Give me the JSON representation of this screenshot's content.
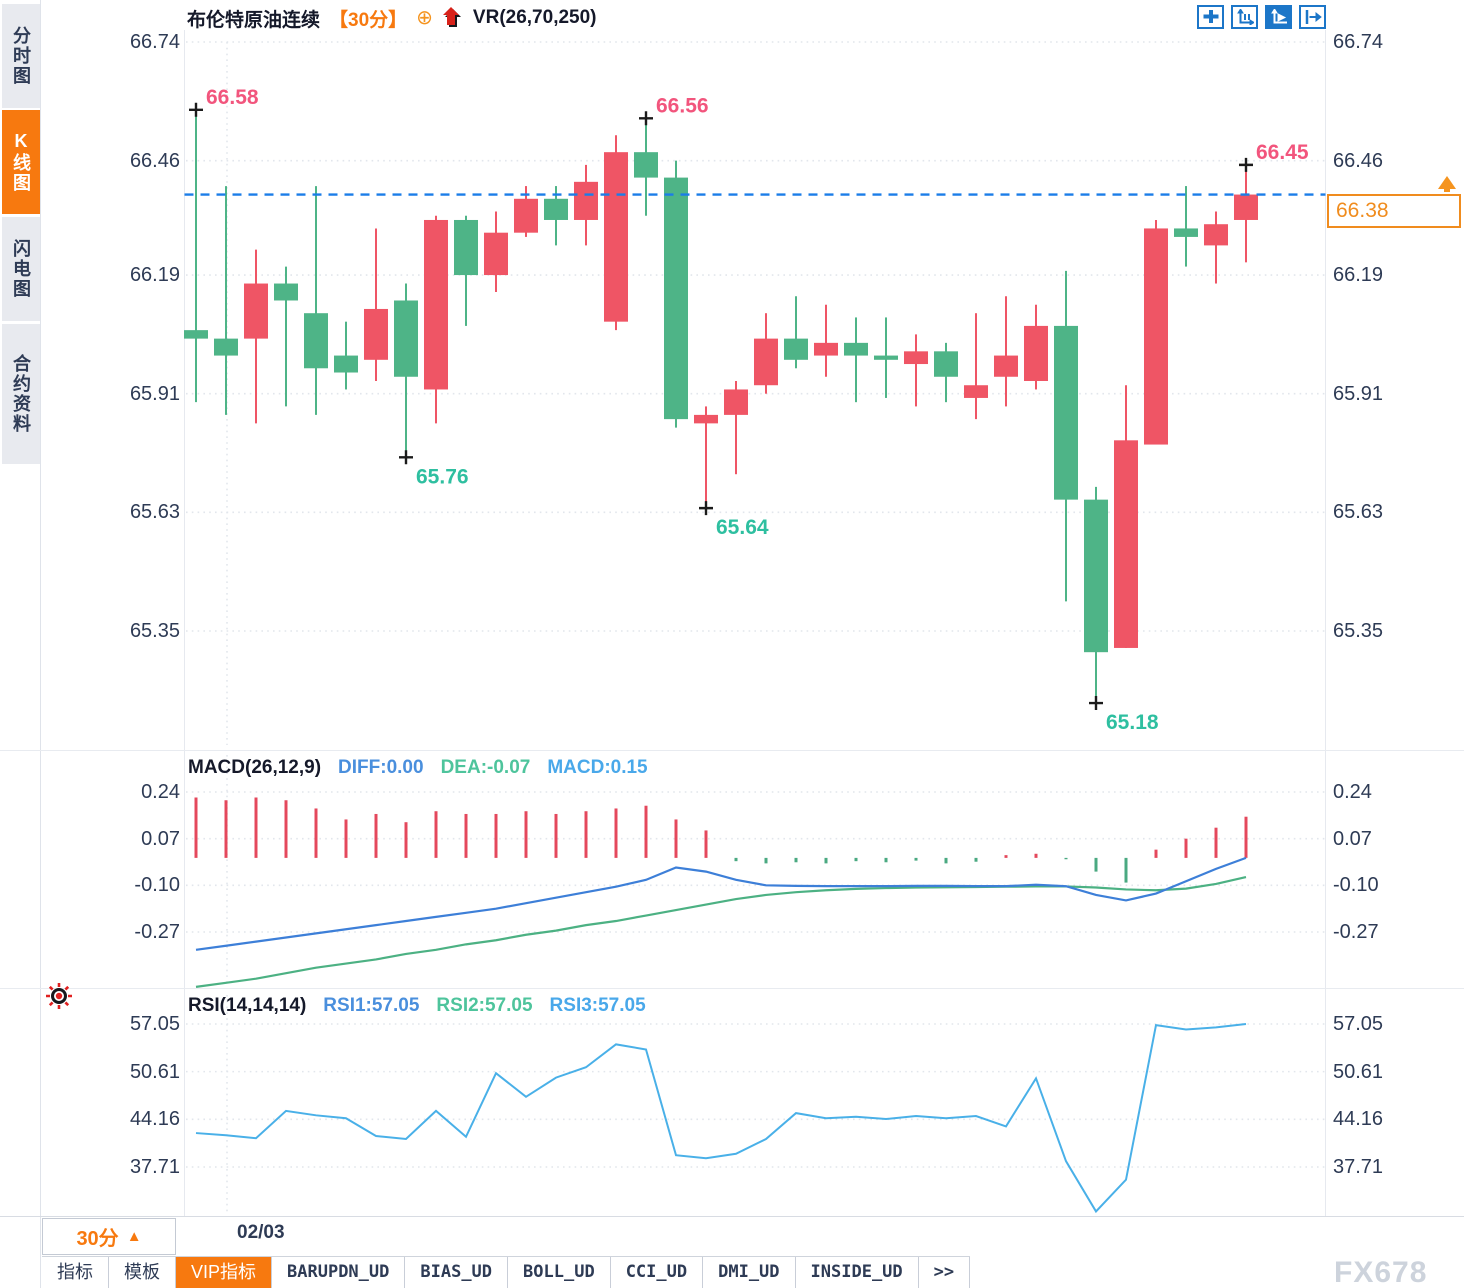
{
  "app": {
    "type": "futures-trading-chart"
  },
  "sidebar": {
    "tabs": [
      {
        "label": "分时图",
        "active": false
      },
      {
        "label": "K线图",
        "active": true
      },
      {
        "label": "闪电图",
        "active": false
      },
      {
        "label": "合约资料",
        "active": false
      }
    ]
  },
  "header": {
    "symbol": "布伦特原油连续",
    "period": "【30分】",
    "plus_icon": "⊕",
    "indicator": "VR(26,70,250)"
  },
  "toolbar": {
    "icons": [
      {
        "name": "move-crosshair-icon",
        "active": false
      },
      {
        "name": "axis-scale-icon",
        "active": false
      },
      {
        "name": "axis-play-icon",
        "active": true
      },
      {
        "name": "jump-to-latest-icon",
        "active": false
      }
    ]
  },
  "colors": {
    "up_candle": "#ef5565",
    "down_candle": "#4eb487",
    "hist_pos": "#e4485c",
    "hist_neg": "#4aa981",
    "diff_line": "#3d7fd8",
    "dea_line": "#4cb183",
    "rsi_line": "#49b0e8",
    "dashed_price_line": "#1b7de8",
    "tag_orange": "#f08c1e",
    "accent_orange": "#f7790f",
    "anno_high": "#f2557d",
    "anno_low": "#2ebfa0",
    "axis_text": "#2e3b55"
  },
  "chart_data": [
    {
      "type": "candlestick",
      "title": "布伦特原油连续 30分 K线",
      "y_ticks": [
        66.74,
        66.46,
        66.19,
        65.91,
        65.63,
        65.35
      ],
      "ylim": [
        65.06,
        66.77
      ],
      "current_price": 66.38,
      "ohlc": [
        [
          66.06,
          66.58,
          65.89,
          66.04
        ],
        [
          66.04,
          66.4,
          65.86,
          66.0
        ],
        [
          66.04,
          66.25,
          65.84,
          66.17
        ],
        [
          66.17,
          66.21,
          65.88,
          66.13
        ],
        [
          66.1,
          66.4,
          65.86,
          65.97
        ],
        [
          66.0,
          66.08,
          65.92,
          65.96
        ],
        [
          65.99,
          66.3,
          65.94,
          66.11
        ],
        [
          66.13,
          66.17,
          65.76,
          65.95
        ],
        [
          65.92,
          66.33,
          65.84,
          66.32
        ],
        [
          66.32,
          66.33,
          66.07,
          66.19
        ],
        [
          66.19,
          66.34,
          66.15,
          66.29
        ],
        [
          66.29,
          66.4,
          66.28,
          66.37
        ],
        [
          66.37,
          66.4,
          66.26,
          66.32
        ],
        [
          66.32,
          66.45,
          66.26,
          66.41
        ],
        [
          66.08,
          66.52,
          66.06,
          66.48
        ],
        [
          66.48,
          66.56,
          66.33,
          66.42
        ],
        [
          66.42,
          66.46,
          65.83,
          65.85
        ],
        [
          65.84,
          65.88,
          65.64,
          65.86
        ],
        [
          65.86,
          65.94,
          65.72,
          65.92
        ],
        [
          65.93,
          66.1,
          65.91,
          66.04
        ],
        [
          66.04,
          66.14,
          65.97,
          65.99
        ],
        [
          66.0,
          66.12,
          65.95,
          66.03
        ],
        [
          66.03,
          66.09,
          65.89,
          66.0
        ],
        [
          66.0,
          66.09,
          65.9,
          65.99
        ],
        [
          65.98,
          66.05,
          65.88,
          66.01
        ],
        [
          66.01,
          66.03,
          65.89,
          65.95
        ],
        [
          65.9,
          66.1,
          65.85,
          65.93
        ],
        [
          65.95,
          66.14,
          65.88,
          66.0
        ],
        [
          65.94,
          66.12,
          65.92,
          66.07
        ],
        [
          66.07,
          66.2,
          65.42,
          65.66
        ],
        [
          65.66,
          65.69,
          65.18,
          65.3
        ],
        [
          65.31,
          65.93,
          65.31,
          65.8
        ],
        [
          65.79,
          66.32,
          65.79,
          66.3
        ],
        [
          66.3,
          66.4,
          66.21,
          66.28
        ],
        [
          66.26,
          66.34,
          66.17,
          66.31
        ],
        [
          66.32,
          66.45,
          66.22,
          66.38
        ]
      ],
      "annotations": [
        {
          "index": 0,
          "kind": "high",
          "value": 66.58,
          "label": "66.58"
        },
        {
          "index": 15,
          "kind": "high",
          "value": 66.56,
          "label": "66.56"
        },
        {
          "index": 35,
          "kind": "high",
          "value": 66.45,
          "label": "66.45"
        },
        {
          "index": 7,
          "kind": "low",
          "value": 65.76,
          "label": "65.76"
        },
        {
          "index": 17,
          "kind": "low",
          "value": 65.64,
          "label": "65.64"
        },
        {
          "index": 30,
          "kind": "low",
          "value": 65.18,
          "label": "65.18"
        }
      ]
    },
    {
      "type": "bar",
      "name": "MACD",
      "title": "MACD(26,12,9)",
      "readouts": {
        "diff": "DIFF:0.00",
        "dea": "DEA:-0.07",
        "macd": "MACD:0.15"
      },
      "y_ticks": [
        0.24,
        0.07,
        -0.1,
        -0.27
      ],
      "histogram": [
        0.22,
        0.21,
        0.22,
        0.21,
        0.18,
        0.14,
        0.16,
        0.13,
        0.17,
        0.16,
        0.16,
        0.17,
        0.16,
        0.17,
        0.18,
        0.19,
        0.14,
        0.1,
        -0.012,
        -0.02,
        -0.016,
        -0.02,
        -0.012,
        -0.016,
        -0.01,
        -0.02,
        -0.014,
        0.01,
        0.015,
        -0.005,
        -0.05,
        -0.09,
        0.03,
        0.07,
        0.11,
        0.15
      ],
      "series": [
        {
          "name": "DIFF",
          "values": [
            -0.335,
            -0.32,
            -0.305,
            -0.29,
            -0.275,
            -0.26,
            -0.245,
            -0.23,
            -0.215,
            -0.2,
            -0.185,
            -0.165,
            -0.145,
            -0.125,
            -0.105,
            -0.08,
            -0.035,
            -0.05,
            -0.08,
            -0.1,
            -0.102,
            -0.103,
            -0.103,
            -0.103,
            -0.102,
            -0.102,
            -0.103,
            -0.103,
            -0.098,
            -0.103,
            -0.135,
            -0.155,
            -0.13,
            -0.085,
            -0.04,
            0.0
          ]
        },
        {
          "name": "DEA",
          "values": [
            -0.47,
            -0.455,
            -0.44,
            -0.42,
            -0.4,
            -0.385,
            -0.37,
            -0.35,
            -0.335,
            -0.315,
            -0.3,
            -0.28,
            -0.265,
            -0.245,
            -0.23,
            -0.21,
            -0.19,
            -0.17,
            -0.15,
            -0.135,
            -0.125,
            -0.118,
            -0.113,
            -0.11,
            -0.108,
            -0.107,
            -0.106,
            -0.105,
            -0.104,
            -0.104,
            -0.108,
            -0.115,
            -0.118,
            -0.112,
            -0.095,
            -0.07
          ]
        }
      ]
    },
    {
      "type": "line",
      "name": "RSI",
      "title": "RSI(14,14,14)",
      "readouts": {
        "rsi1": "RSI1:57.05",
        "rsi2": "RSI2:57.05",
        "rsi3": "RSI3:57.05"
      },
      "y_ticks": [
        57.05,
        50.61,
        44.16,
        37.71
      ],
      "values": [
        42.3,
        42.0,
        41.6,
        45.3,
        44.7,
        44.3,
        41.9,
        41.5,
        45.3,
        41.8,
        50.4,
        47.2,
        49.8,
        51.2,
        54.3,
        53.6,
        39.3,
        38.9,
        39.5,
        41.5,
        45.0,
        44.3,
        44.5,
        44.2,
        44.6,
        44.3,
        44.6,
        43.2,
        49.7,
        38.5,
        31.7,
        36.0,
        56.9,
        56.3,
        56.6,
        57.05
      ]
    }
  ],
  "price_tag": {
    "value": "66.38"
  },
  "footer": {
    "period_button": "30分",
    "period_arrow": "▲",
    "date": "02/03",
    "tabs": [
      {
        "label": "指标",
        "active": false,
        "mono": false
      },
      {
        "label": "模板",
        "active": false,
        "mono": false
      },
      {
        "label": "VIP指标",
        "active": true,
        "mono": false
      },
      {
        "label": "BARUPDN_UD",
        "active": false,
        "mono": true
      },
      {
        "label": "BIAS_UD",
        "active": false,
        "mono": true
      },
      {
        "label": "BOLL_UD",
        "active": false,
        "mono": true
      },
      {
        "label": "CCI_UD",
        "active": false,
        "mono": true
      },
      {
        "label": "DMI_UD",
        "active": false,
        "mono": true
      },
      {
        "label": "INSIDE_UD",
        "active": false,
        "mono": true
      },
      {
        "label": ">>",
        "active": false,
        "mono": true
      }
    ]
  },
  "watermark": "FX678"
}
